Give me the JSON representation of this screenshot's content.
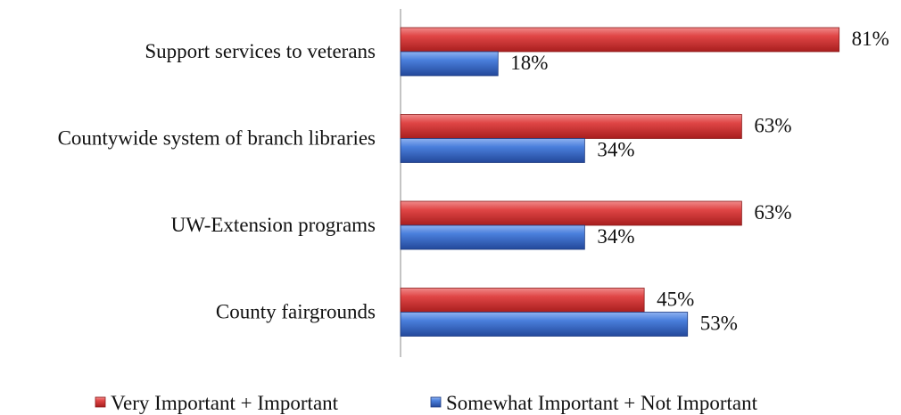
{
  "chart_data": {
    "type": "bar",
    "orientation": "horizontal",
    "categories": [
      "Support services to veterans",
      "Countywide system of branch libraries",
      "UW-Extension programs",
      "County fairgrounds"
    ],
    "series": [
      {
        "name": "Very Important + Important",
        "values": [
          81,
          63,
          63,
          45
        ],
        "labels": [
          "81%",
          "63%",
          "63%",
          "45%"
        ],
        "color": "#d23a3a"
      },
      {
        "name": "Somewhat Important + Not Important",
        "values": [
          18,
          34,
          34,
          53
        ],
        "labels": [
          "18%",
          "34%",
          "34%",
          "53%"
        ],
        "color": "#3b6fd0"
      }
    ],
    "xlim": [
      0,
      100
    ],
    "grid": false,
    "legend_position": "bottom",
    "title": "",
    "xlabel": "",
    "ylabel": ""
  }
}
